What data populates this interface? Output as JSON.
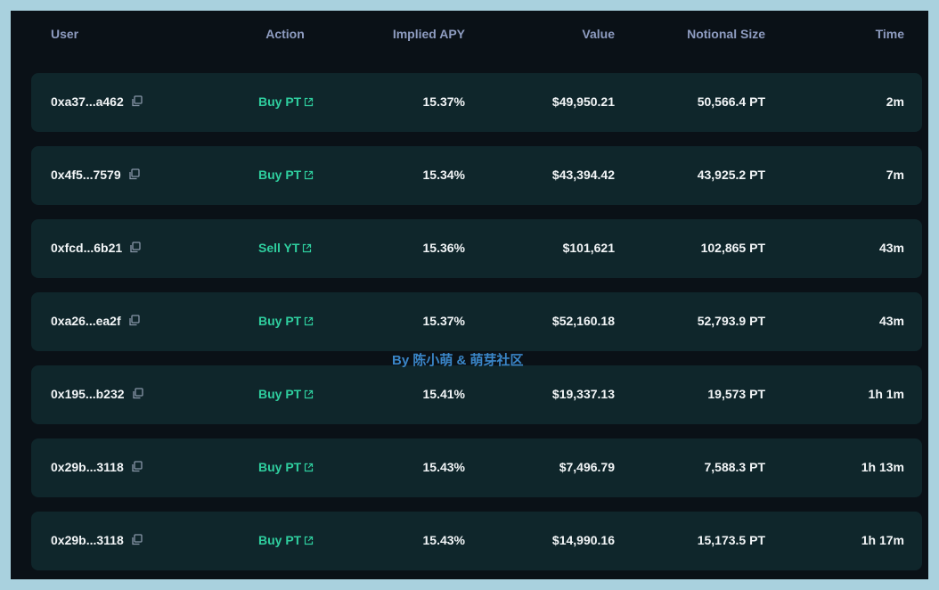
{
  "table": {
    "headers": [
      "User",
      "Action",
      "Implied APY",
      "Value",
      "Notional Size",
      "Time"
    ],
    "rows": [
      [
        "0xa37...a462",
        "Buy PT",
        "15.37%",
        "$49,950.21",
        "50,566.4 PT",
        "2m"
      ],
      [
        "0x4f5...7579",
        "Buy PT",
        "15.34%",
        "$43,394.42",
        "43,925.2 PT",
        "7m"
      ],
      [
        "0xfcd...6b21",
        "Sell YT",
        "15.36%",
        "$101,621",
        "102,865 PT",
        "43m"
      ],
      [
        "0xa26...ea2f",
        "Buy PT",
        "15.37%",
        "$52,160.18",
        "52,793.9 PT",
        "43m"
      ],
      [
        "0x195...b232",
        "Buy PT",
        "15.41%",
        "$19,337.13",
        "19,573 PT",
        "1h 1m"
      ],
      [
        "0x29b...3118",
        "Buy PT",
        "15.43%",
        "$7,496.79",
        "7,588.3 PT",
        "1h 13m"
      ],
      [
        "0x29b...3118",
        "Buy PT",
        "15.43%",
        "$14,990.16",
        "15,173.5 PT",
        "1h 17m"
      ]
    ]
  },
  "watermark": "By 陈小萌 & 萌芽社区"
}
